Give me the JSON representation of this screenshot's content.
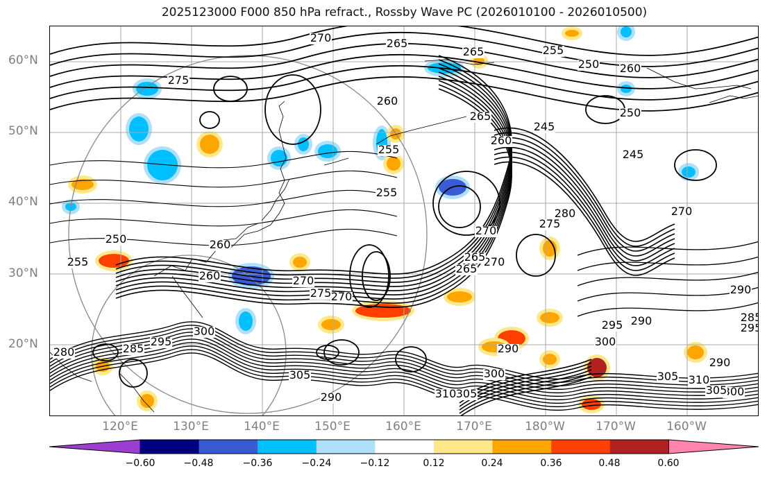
{
  "title": "2025123000 F000 850 hPa refract., Rossby Wave PC (2026010100 - 2026010500)",
  "lat_labels": [
    "60°N",
    "50°N",
    "40°N",
    "30°N",
    "20°N"
  ],
  "lon_labels": [
    "120°E",
    "130°E",
    "140°E",
    "150°E",
    "160°E",
    "170°E",
    "180°W",
    "170°W",
    "160°W"
  ],
  "colorbar": {
    "labels": [
      "−0.60",
      "−0.48",
      "−0.36",
      "−0.24",
      "−0.12",
      "0.12",
      "0.24",
      "0.36",
      "0.48",
      "0.60"
    ],
    "colors": [
      "#9c3fd1",
      "#000080",
      "#3a5bd6",
      "#00bfff",
      "#aee0fa",
      "#ffffff",
      "#ffe88a",
      "#ffa500",
      "#ff4000",
      "#b22222",
      "#ff85ad"
    ]
  },
  "contour_labels": [
    "270",
    "265",
    "265",
    "255",
    "250",
    "260",
    "275",
    "260",
    "255",
    "245",
    "250",
    "265",
    "260",
    "245",
    "255",
    "280",
    "275",
    "270",
    "270",
    "250",
    "255",
    "260",
    "260",
    "265",
    "270",
    "265",
    "270",
    "275",
    "270",
    "290",
    "295",
    "290",
    "300",
    "305",
    "290",
    "300",
    "305",
    "310",
    "295",
    "280",
    "285",
    "300",
    "305",
    "310",
    "290",
    "295",
    "300",
    "305",
    "285",
    "290"
  ],
  "colors": {
    "contour": "#000000",
    "grid": "#aaaaaa",
    "coast": "#000000"
  }
}
